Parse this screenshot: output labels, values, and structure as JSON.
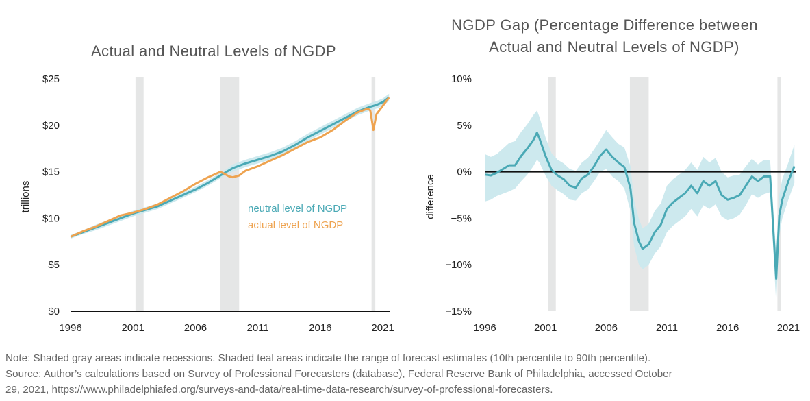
{
  "colors": {
    "neutral": "#4aa9b5",
    "actual": "#eea350",
    "band": "#cde9ee",
    "recession": "#e5e6e6",
    "axis": "#111111"
  },
  "chart_data": [
    {
      "type": "line",
      "title": "Actual and Neutral Levels of NGDP",
      "xlabel": "",
      "ylabel": "trillions",
      "xlim": [
        1996,
        2021.6
      ],
      "ylim": [
        0,
        25
      ],
      "x_ticks": [
        "1996",
        "2001",
        "2006",
        "2011",
        "2016",
        "2021"
      ],
      "y_ticks": [
        "$0",
        "$5",
        "$10",
        "$15",
        "$20",
        "$25"
      ],
      "recessions": [
        [
          2001.2,
          2001.85
        ],
        [
          2007.95,
          2009.5
        ],
        [
          2020.1,
          2020.4
        ]
      ],
      "legend": {
        "placement": "center-right"
      },
      "series": [
        {
          "name": "neutral level of NGDP",
          "x": [
            1996,
            1997,
            1998,
            1999,
            2000,
            2001,
            2002,
            2003,
            2004,
            2005,
            2006,
            2007,
            2007.5,
            2008,
            2008.5,
            2009,
            2010,
            2011,
            2012,
            2013,
            2014,
            2015,
            2016,
            2017,
            2018,
            2019,
            2020,
            2020.5,
            2021,
            2021.5
          ],
          "values": [
            8.0,
            8.5,
            9.0,
            9.5,
            10.0,
            10.5,
            10.9,
            11.3,
            11.9,
            12.5,
            13.1,
            13.8,
            14.2,
            14.6,
            15.0,
            15.4,
            15.9,
            16.3,
            16.7,
            17.2,
            17.9,
            18.7,
            19.4,
            20.1,
            20.8,
            21.5,
            22.0,
            22.2,
            22.5,
            23.0
          ],
          "band_low": [
            7.8,
            8.3,
            8.7,
            9.2,
            9.7,
            10.2,
            10.6,
            11.0,
            11.6,
            12.2,
            12.8,
            13.5,
            13.9,
            14.3,
            14.7,
            15.0,
            15.5,
            15.9,
            16.3,
            16.8,
            17.5,
            18.3,
            19.0,
            19.7,
            20.4,
            21.1,
            21.6,
            21.8,
            22.1,
            22.6
          ],
          "band_high": [
            8.2,
            8.7,
            9.3,
            9.8,
            10.3,
            10.8,
            11.2,
            11.6,
            12.2,
            12.8,
            13.4,
            14.1,
            14.5,
            14.9,
            15.3,
            15.8,
            16.3,
            16.7,
            17.1,
            17.6,
            18.3,
            19.1,
            19.8,
            20.5,
            21.2,
            21.9,
            22.4,
            22.6,
            22.9,
            23.4
          ]
        },
        {
          "name": "actual level of NGDP",
          "x": [
            1996,
            1997,
            1998,
            1999,
            2000,
            2001,
            2002,
            2003,
            2004,
            2005,
            2006,
            2007,
            2007.5,
            2008,
            2008.3,
            2008.7,
            2009,
            2009.5,
            2010,
            2011,
            2012,
            2013,
            2014,
            2015,
            2016,
            2017,
            2018,
            2019,
            2019.8,
            2020.0,
            2020.25,
            2020.5,
            2021,
            2021.5
          ],
          "values": [
            8.0,
            8.6,
            9.1,
            9.7,
            10.3,
            10.6,
            11.0,
            11.5,
            12.2,
            12.9,
            13.7,
            14.4,
            14.7,
            15.0,
            14.8,
            14.5,
            14.4,
            14.6,
            15.1,
            15.6,
            16.2,
            16.8,
            17.5,
            18.2,
            18.7,
            19.5,
            20.5,
            21.4,
            21.8,
            21.6,
            19.5,
            21.2,
            22.1,
            23.0
          ]
        }
      ]
    },
    {
      "type": "area",
      "title": "NGDP Gap (Percentage Difference between Actual and Neutral Levels of NGDP)",
      "title_lines": [
        "NGDP Gap (Percentage Difference between",
        "Actual and Neutral Levels of NGDP)"
      ],
      "xlabel": "",
      "ylabel": "difference",
      "xlim": [
        1996,
        2021.6
      ],
      "ylim": [
        -15,
        10
      ],
      "x_ticks": [
        "1996",
        "2001",
        "2006",
        "2011",
        "2016",
        "2021"
      ],
      "y_ticks": [
        "10%",
        "5%",
        "0%",
        "−5%",
        "−10%",
        "−15%"
      ],
      "recessions": [
        [
          2001.2,
          2001.85
        ],
        [
          2007.95,
          2009.5
        ],
        [
          2020.1,
          2020.4
        ]
      ],
      "series": [
        {
          "name": "",
          "x": [
            1996,
            1996.5,
            1997,
            1998,
            1998.5,
            1999,
            1999.5,
            2000,
            2000.3,
            2000.5,
            2001,
            2001.5,
            2002,
            2002.5,
            2003,
            2003.5,
            2004,
            2004.5,
            2005,
            2005.5,
            2006,
            2006.5,
            2007,
            2007.5,
            2008,
            2008.3,
            2008.7,
            2009,
            2009.5,
            2010,
            2010.5,
            2011,
            2011.5,
            2012,
            2012.5,
            2013,
            2013.5,
            2014,
            2014.5,
            2015,
            2015.5,
            2016,
            2016.5,
            2017,
            2017.5,
            2018,
            2018.5,
            2019,
            2019.5,
            2020.0,
            2020.25,
            2020.5,
            2021,
            2021.5
          ],
          "values": [
            -0.3,
            -0.4,
            -0.1,
            0.7,
            0.7,
            1.7,
            2.5,
            3.4,
            4.2,
            3.6,
            1.7,
            0.2,
            -0.4,
            -0.8,
            -1.5,
            -1.7,
            -0.7,
            -0.3,
            0.6,
            1.7,
            2.4,
            1.6,
            1.0,
            0.5,
            -1.8,
            -5.5,
            -7.5,
            -8.3,
            -7.8,
            -6.5,
            -5.7,
            -4.0,
            -3.3,
            -2.8,
            -2.3,
            -1.5,
            -2.3,
            -1.0,
            -1.5,
            -1.0,
            -2.5,
            -3.0,
            -2.8,
            -2.5,
            -1.5,
            -0.5,
            -1.0,
            -0.5,
            -0.5,
            -11.5,
            -4.7,
            -3.0,
            -1.0,
            0.6
          ],
          "band_low": [
            -3.2,
            -3.0,
            -2.6,
            -2.1,
            -1.8,
            -1.0,
            -0.3,
            0.6,
            1.3,
            1.0,
            -0.4,
            -1.5,
            -2.0,
            -2.4,
            -3.0,
            -3.1,
            -2.3,
            -1.9,
            -1.0,
            0.0,
            0.3,
            -0.5,
            -1.0,
            -1.8,
            -4.2,
            -8.0,
            -10.0,
            -10.5,
            -10.0,
            -8.8,
            -8.0,
            -6.5,
            -5.8,
            -5.3,
            -4.8,
            -4.0,
            -4.8,
            -3.6,
            -4.0,
            -3.5,
            -4.8,
            -5.2,
            -5.0,
            -4.6,
            -3.6,
            -2.4,
            -2.8,
            -2.4,
            -2.2,
            -14.2,
            -6.9,
            -5.0,
            -3.0,
            -1.2
          ],
          "band_high": [
            1.9,
            1.6,
            1.9,
            3.1,
            3.3,
            4.3,
            5.1,
            6.1,
            6.6,
            5.9,
            3.7,
            2.0,
            1.3,
            0.9,
            0.3,
            0.1,
            1.0,
            1.5,
            2.4,
            3.4,
            4.5,
            3.7,
            3.0,
            2.6,
            0.6,
            -3.1,
            -5.1,
            -6.1,
            -5.6,
            -4.2,
            -3.4,
            -1.5,
            -0.8,
            -0.3,
            0.2,
            1.0,
            0.2,
            1.6,
            1.0,
            1.5,
            0.0,
            -0.6,
            -0.4,
            -0.3,
            0.6,
            1.4,
            0.8,
            1.3,
            1.2,
            -8.8,
            -2.5,
            -0.8,
            1.0,
            2.9
          ]
        }
      ]
    }
  ],
  "note": {
    "line1": "Note: Shaded gray areas indicate recessions. Shaded teal areas indicate the range of forecast estimates (10th percentile to 90th percentile).",
    "line2": "Source: Author’s calculations based on Survey of Professional Forecasters (database), Federal Reserve Bank of Philadelphia, accessed October",
    "line3": "29, 2021, https://www.philadelphiafed.org/surveys-and-data/real-time-data-research/survey-of-professional-forecasters."
  }
}
